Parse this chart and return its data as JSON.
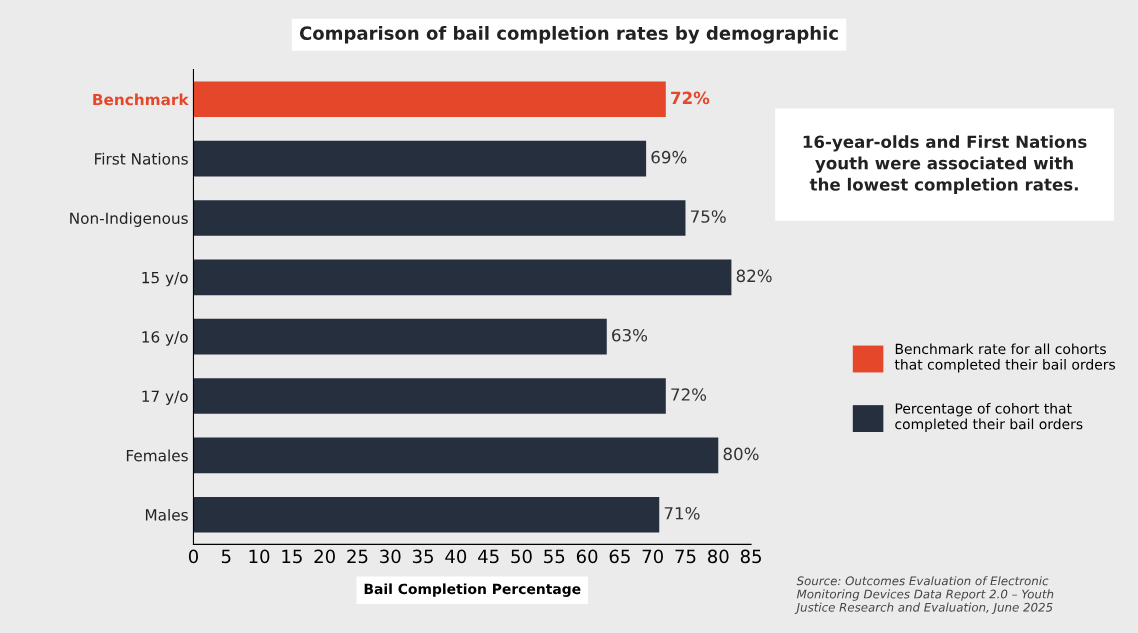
{
  "chart_data": {
    "type": "bar",
    "orientation": "horizontal",
    "title": "Comparison of bail completion rates by demographic",
    "xlabel": "Bail Completion Percentage",
    "categories": [
      "Benchmark",
      "First Nations",
      "Non-Indigenous",
      "15 y/o",
      "16 y/o",
      "17 y/o",
      "Females",
      "Males"
    ],
    "series": [
      {
        "name": "Benchmark rate for all cohorts\nthat completed their bail orders",
        "color": "#e5472a",
        "values": [
          72,
          null,
          null,
          null,
          null,
          null,
          null,
          null
        ],
        "value_labels": [
          "72%",
          null,
          null,
          null,
          null,
          null,
          null,
          null
        ]
      },
      {
        "name": "Percentage of cohort that\ncompleted their bail orders",
        "color": "#252f3d",
        "values": [
          null,
          69,
          75,
          82,
          63,
          72,
          80,
          71
        ],
        "value_labels": [
          null,
          "69%",
          "75%",
          "82%",
          "63%",
          "72%",
          "80%",
          "71%"
        ]
      }
    ],
    "xlim": [
      0,
      85
    ],
    "xticks": [
      0,
      5,
      10,
      15,
      20,
      25,
      30,
      35,
      40,
      45,
      50,
      55,
      60,
      65,
      70,
      75,
      80,
      85
    ],
    "legend": "right",
    "annotations": [
      "16-year-olds and First Nations\nyouth were associated with\nthe lowest completion rates.",
      "Source: Outcomes Evaluation of Electronic\nMonitoring Devices Data Report 2.0 – Youth\nJustice Research and Evaluation, June 2025"
    ]
  }
}
